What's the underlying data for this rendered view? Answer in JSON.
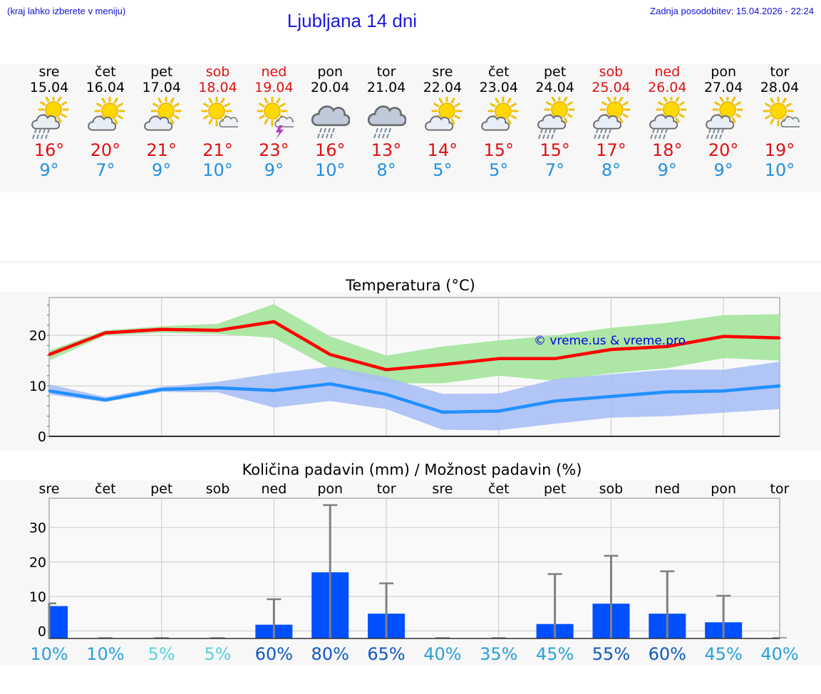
{
  "header": {
    "hint": "(kraj lahko izberete v meniju)",
    "title": "Ljubljana 14 dni",
    "updated": "Zadnja posodobitev: 15.04.2026 - 22:24"
  },
  "days": [
    {
      "name": "sre",
      "date": "15.04",
      "weekend": false,
      "icon": "sun-cloud-rain-icon",
      "tmax": "16°",
      "tmin": "9°"
    },
    {
      "name": "čet",
      "date": "16.04",
      "weekend": false,
      "icon": "sun-cloud-icon",
      "tmax": "20°",
      "tmin": "7°"
    },
    {
      "name": "pet",
      "date": "17.04",
      "weekend": false,
      "icon": "sun-cloud-icon",
      "tmax": "21°",
      "tmin": "9°"
    },
    {
      "name": "sob",
      "date": "18.04",
      "weekend": true,
      "icon": "sun-small-cloud-icon",
      "tmax": "21°",
      "tmin": "10°"
    },
    {
      "name": "ned",
      "date": "19.04",
      "weekend": true,
      "icon": "sun-thunder-icon",
      "tmax": "23°",
      "tmin": "9°"
    },
    {
      "name": "pon",
      "date": "20.04",
      "weekend": false,
      "icon": "cloud-rain-icon",
      "tmax": "16°",
      "tmin": "10°"
    },
    {
      "name": "tor",
      "date": "21.04",
      "weekend": false,
      "icon": "cloud-rain-icon",
      "tmax": "13°",
      "tmin": "8°"
    },
    {
      "name": "sre",
      "date": "22.04",
      "weekend": false,
      "icon": "sun-cloud-icon",
      "tmax": "14°",
      "tmin": "5°"
    },
    {
      "name": "čet",
      "date": "23.04",
      "weekend": false,
      "icon": "sun-cloud-icon",
      "tmax": "15°",
      "tmin": "5°"
    },
    {
      "name": "pet",
      "date": "24.04",
      "weekend": false,
      "icon": "sun-cloud-rain-icon",
      "tmax": "15°",
      "tmin": "7°"
    },
    {
      "name": "sob",
      "date": "25.04",
      "weekend": true,
      "icon": "sun-cloud-rain-icon",
      "tmax": "17°",
      "tmin": "8°"
    },
    {
      "name": "ned",
      "date": "26.04",
      "weekend": true,
      "icon": "sun-cloud-rain-icon",
      "tmax": "18°",
      "tmin": "9°"
    },
    {
      "name": "pon",
      "date": "27.04",
      "weekend": false,
      "icon": "sun-cloud-rain-icon",
      "tmax": "20°",
      "tmin": "9°"
    },
    {
      "name": "tor",
      "date": "28.04",
      "weekend": false,
      "icon": "sun-small-cloud-icon",
      "tmax": "19°",
      "tmin": "10°"
    }
  ],
  "colors": {
    "max_line": "#ff0000",
    "max_band": "#a8e6a0",
    "min_line": "#2090ff",
    "min_band": "#a8bff5",
    "bar": "#0050ff",
    "whisker": "#808080",
    "grid": "#c8c8c8",
    "watermark": "#0000e0"
  },
  "chart_data": [
    {
      "type": "line",
      "title": "Temperatura (°C)",
      "watermark": "© vreme.us & vreme.pro",
      "x": [
        0,
        1,
        2,
        3,
        4,
        5,
        6,
        7,
        8,
        9,
        10,
        11,
        12,
        13
      ],
      "ylim": [
        0,
        27.5
      ],
      "yticks": [
        0,
        10,
        20
      ],
      "series": [
        {
          "name": "max",
          "values": [
            16.2,
            20.5,
            21.2,
            21.0,
            22.7,
            16.2,
            13.2,
            14.2,
            15.4,
            15.4,
            17.2,
            17.8,
            19.8,
            19.5
          ],
          "band_low": [
            15.0,
            20.0,
            20.5,
            20.3,
            19.5,
            13.5,
            10.5,
            10.5,
            12.0,
            11.0,
            12.5,
            13.5,
            15.5,
            15.0
          ],
          "band_high": [
            17.0,
            21.0,
            21.8,
            22.3,
            26.2,
            19.8,
            16.0,
            17.8,
            19.0,
            20.0,
            21.5,
            22.5,
            24.0,
            24.2
          ]
        },
        {
          "name": "min",
          "values": [
            9.0,
            7.2,
            9.3,
            9.6,
            9.1,
            10.4,
            8.3,
            4.8,
            5.0,
            7.0,
            7.9,
            8.8,
            9.0,
            10.0
          ],
          "band_low": [
            8.3,
            6.8,
            8.8,
            8.7,
            5.7,
            7.0,
            5.4,
            1.3,
            1.2,
            2.5,
            3.7,
            4.0,
            4.7,
            5.4
          ],
          "band_high": [
            10.3,
            7.8,
            9.8,
            10.8,
            12.5,
            13.8,
            11.7,
            8.4,
            8.5,
            11.3,
            12.3,
            13.2,
            13.2,
            14.8
          ]
        }
      ]
    },
    {
      "type": "bar",
      "title": "Količina padavin (mm) / Možnost padavin (%)",
      "categories": [
        "sre",
        "čet",
        "pet",
        "sob",
        "ned",
        "pon",
        "tor",
        "sre",
        "čet",
        "pet",
        "sob",
        "ned",
        "pon",
        "tor"
      ],
      "values": [
        7.2,
        0,
        0,
        0,
        1.8,
        17.0,
        5.0,
        0,
        0,
        2.0,
        7.9,
        5.0,
        2.5,
        0
      ],
      "err_high": [
        8.0,
        0,
        0,
        0,
        9.2,
        36.5,
        13.8,
        0,
        0,
        16.5,
        21.8,
        17.3,
        10.2,
        0
      ],
      "ylim": [
        -2.2,
        38.5
      ],
      "yticks": [
        0,
        10,
        20,
        30
      ],
      "probability": [
        "10%",
        "10%",
        "5%",
        "5%",
        "60%",
        "80%",
        "65%",
        "40%",
        "35%",
        "45%",
        "55%",
        "60%",
        "45%",
        "40%"
      ],
      "probability_colors": [
        "#2aa0d8",
        "#2aa0d8",
        "#5ad0e0",
        "#5ad0e0",
        "#1058c0",
        "#1058c0",
        "#1058c0",
        "#2aa0d8",
        "#2aa0d8",
        "#2aa0d8",
        "#1058c0",
        "#1058c0",
        "#2aa0d8",
        "#2aa0d8"
      ]
    }
  ]
}
